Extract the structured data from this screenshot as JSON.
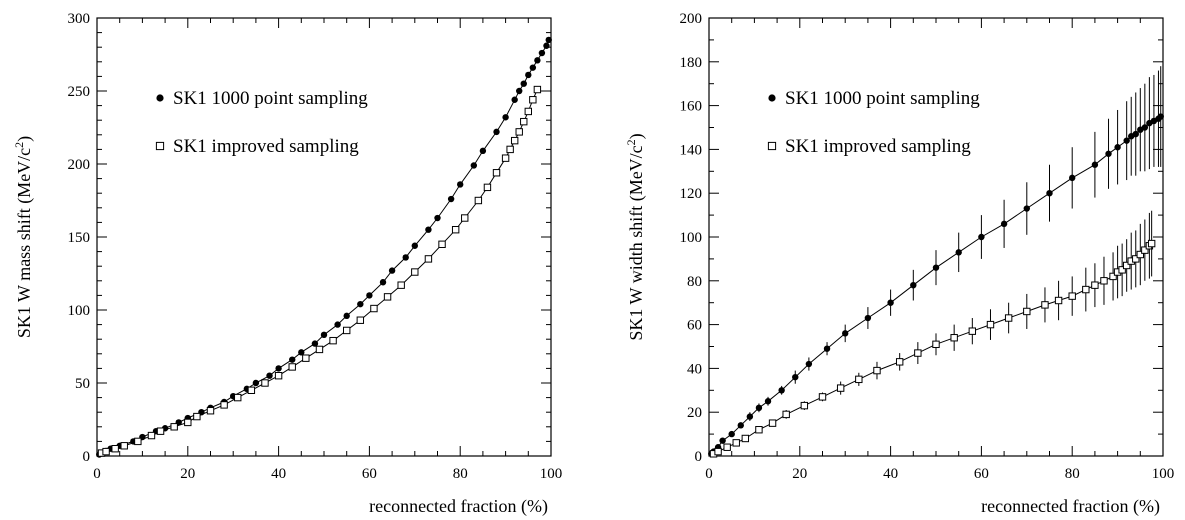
{
  "chart_data": [
    {
      "type": "scatter",
      "ylabel_main": "SK1 W mass shift (MeV/c",
      "ylabel_sup": "2",
      "ylabel_tail": ")",
      "xlabel": "reconnected fraction (%)",
      "xlim": [
        0,
        100
      ],
      "ylim": [
        0,
        300
      ],
      "xticks": [
        "0",
        "20",
        "40",
        "60",
        "80",
        "100"
      ],
      "yticks": [
        "0",
        "50",
        "100",
        "150",
        "200",
        "250",
        "300"
      ],
      "grid": false,
      "legend_position": "upper-left",
      "series": [
        {
          "name": "SK1 1000 point sampling",
          "marker": "filled-circle",
          "x": [
            0.5,
            1,
            2,
            3,
            5,
            8,
            10,
            13,
            15,
            18,
            20,
            23,
            25,
            28,
            30,
            33,
            35,
            38,
            40,
            43,
            45,
            48,
            50,
            53,
            55,
            58,
            60,
            63,
            65,
            68,
            70,
            73,
            75,
            78,
            80,
            83,
            85,
            88,
            90,
            92,
            93,
            94,
            95,
            96,
            97,
            98,
            99,
            99.5
          ],
          "y": [
            1,
            2,
            3.5,
            5,
            7,
            10,
            13,
            17,
            19,
            23,
            26,
            30,
            33,
            37,
            41,
            46,
            50,
            55,
            60,
            66,
            71,
            77,
            83,
            90,
            96,
            104,
            110,
            119,
            127,
            136,
            144,
            155,
            163,
            176,
            186,
            199,
            209,
            222,
            232,
            244,
            250,
            255,
            261,
            266,
            271,
            276,
            281,
            285
          ],
          "err": [
            0,
            0,
            0,
            0,
            0,
            0,
            0,
            0,
            0,
            0,
            0,
            0,
            0,
            0,
            0,
            0,
            0,
            0,
            0,
            0,
            0,
            0,
            0,
            0,
            0,
            0,
            0,
            0,
            0,
            0,
            0,
            0,
            0,
            0,
            0,
            0,
            0,
            0,
            0,
            0,
            0,
            0,
            0,
            0,
            0,
            0,
            0,
            0
          ]
        },
        {
          "name": "SK1 improved sampling",
          "marker": "open-square",
          "x": [
            1,
            2,
            4,
            6,
            9,
            12,
            14,
            17,
            20,
            22,
            25,
            28,
            31,
            34,
            37,
            40,
            43,
            46,
            49,
            52,
            55,
            58,
            61,
            64,
            67,
            70,
            73,
            76,
            79,
            81,
            84,
            86,
            88,
            90,
            91,
            92,
            93,
            94,
            95,
            96,
            97
          ],
          "y": [
            2,
            3,
            5,
            7,
            10,
            14,
            17,
            20,
            23,
            27,
            31,
            35,
            40,
            45,
            50,
            55,
            61,
            67,
            73,
            79,
            86,
            93,
            101,
            109,
            117,
            126,
            135,
            145,
            155,
            163,
            175,
            184,
            194,
            204,
            210,
            216,
            222,
            229,
            236,
            244,
            251
          ],
          "err": [
            0,
            0,
            0,
            0,
            0,
            0,
            0,
            0,
            0,
            0,
            0,
            0,
            0,
            0,
            0,
            0,
            0,
            0,
            0,
            0,
            0,
            0,
            0,
            0,
            0,
            0,
            0,
            0,
            0,
            0,
            0,
            0,
            0,
            0,
            0,
            0,
            0,
            0,
            0,
            0,
            0
          ]
        }
      ]
    },
    {
      "type": "scatter",
      "ylabel_main": "SK1 W width shift (MeV/c",
      "ylabel_sup": "2",
      "ylabel_tail": ")",
      "xlabel": "reconnected fraction (%)",
      "xlim": [
        0,
        100
      ],
      "ylim": [
        0,
        200
      ],
      "xticks": [
        "0",
        "20",
        "40",
        "60",
        "80",
        "100"
      ],
      "yticks": [
        "0",
        "20",
        "40",
        "60",
        "80",
        "100",
        "120",
        "140",
        "160",
        "180",
        "200"
      ],
      "grid": false,
      "legend_position": "upper-left",
      "series": [
        {
          "name": "SK1 1000 point sampling",
          "marker": "filled-circle",
          "x": [
            0.5,
            1,
            2,
            3,
            5,
            7,
            9,
            11,
            13,
            16,
            19,
            22,
            26,
            30,
            35,
            40,
            45,
            50,
            55,
            60,
            65,
            70,
            75,
            80,
            85,
            88,
            90,
            92,
            93,
            94,
            95,
            96,
            97,
            98,
            99,
            99.5
          ],
          "y": [
            1,
            2,
            4,
            7,
            10,
            14,
            18,
            22,
            25,
            30,
            36,
            42,
            49,
            56,
            63,
            70,
            78,
            86,
            93,
            100,
            106,
            113,
            120,
            127,
            133,
            138,
            141,
            144,
            146,
            147,
            149,
            150,
            152,
            153,
            154,
            155
          ],
          "err": [
            1,
            1,
            1,
            1,
            1,
            1,
            2,
            2,
            2,
            2,
            3,
            3,
            3,
            4,
            5,
            6,
            7,
            8,
            9,
            10,
            11,
            12,
            13,
            14,
            15,
            16,
            17,
            18,
            18,
            19,
            19,
            20,
            21,
            21,
            22,
            23
          ]
        },
        {
          "name": "SK1 improved sampling",
          "marker": "open-square",
          "x": [
            1,
            2,
            4,
            6,
            8,
            11,
            14,
            17,
            21,
            25,
            29,
            33,
            37,
            42,
            46,
            50,
            54,
            58,
            62,
            66,
            70,
            74,
            77,
            80,
            83,
            85,
            87,
            89,
            90,
            91,
            92,
            93,
            94,
            95,
            96,
            97,
            97.5
          ],
          "y": [
            1,
            2,
            4,
            6,
            8,
            12,
            15,
            19,
            23,
            27,
            31,
            35,
            39,
            43,
            47,
            51,
            54,
            57,
            60,
            63,
            66,
            69,
            71,
            73,
            76,
            78,
            80,
            82,
            84,
            85,
            87,
            89,
            90,
            92,
            94,
            96,
            97
          ],
          "err": [
            1,
            1,
            1,
            1,
            1,
            1,
            1,
            2,
            2,
            2,
            3,
            3,
            4,
            4,
            5,
            5,
            6,
            6,
            7,
            7,
            8,
            8,
            9,
            9,
            10,
            10,
            11,
            11,
            12,
            12,
            12,
            13,
            13,
            14,
            14,
            15,
            15
          ]
        }
      ]
    }
  ]
}
